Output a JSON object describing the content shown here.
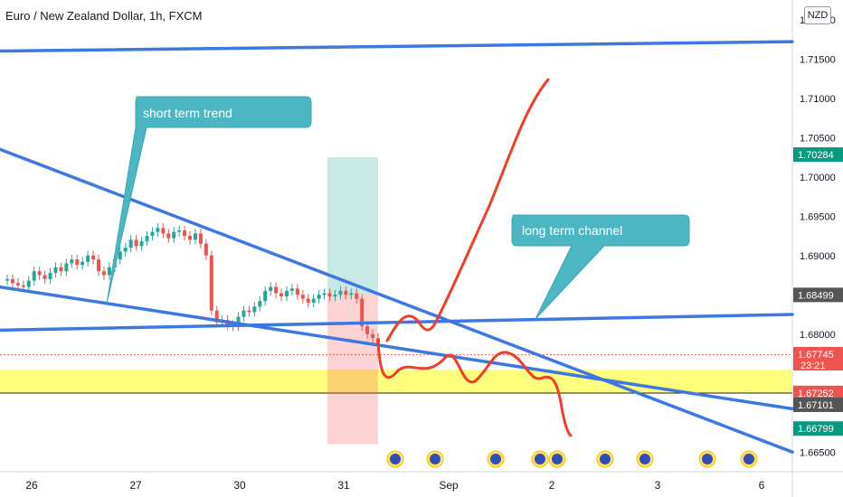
{
  "header": {
    "title": "Euro / New Zealand Dollar, 1h, FXCM",
    "currency_badge": "NZD"
  },
  "colors": {
    "up": "#26a69a",
    "down": "#ef5350",
    "trend": "#3d78e0",
    "drawing": "#f23d27",
    "callout": "#4db6c3",
    "zone": "#ffff66"
  },
  "chart_data": {
    "type": "candlestick",
    "ylim": [
      1.6625,
      1.7225
    ],
    "y_ticks": [
      "1.72000",
      "1.71500",
      "1.71000",
      "1.70500",
      "1.70000",
      "1.69500",
      "1.69000",
      "1.68000",
      "1.66500"
    ],
    "x_ticks": [
      "26",
      "27",
      "30",
      "31",
      "Sep",
      "2",
      "3",
      "6"
    ],
    "price_labels": [
      {
        "text": "1.70284",
        "value": 1.70284,
        "color": "#089981"
      },
      {
        "text": "1.68499",
        "value": 1.68499,
        "color": "#555555"
      },
      {
        "text": "1.67745",
        "value": 1.67745,
        "color": "#ef5350",
        "sub": "23:21"
      },
      {
        "text": "1.67252",
        "value": 1.67252,
        "color": "#ef5350"
      },
      {
        "text": "1.67101",
        "value": 1.67101,
        "color": "#555555"
      },
      {
        "text": "1.66799",
        "value": 1.66799,
        "color": "#089981"
      }
    ],
    "candles_close": [
      1.687,
      1.6865,
      1.6862,
      1.686,
      1.6868,
      1.688,
      1.6875,
      1.687,
      1.6878,
      1.6885,
      1.688,
      1.689,
      1.6895,
      1.6888,
      1.6892,
      1.69,
      1.6895,
      1.688,
      1.6875,
      1.6885,
      1.6895,
      1.6905,
      1.691,
      1.692,
      1.6912,
      1.6918,
      1.6925,
      1.693,
      1.6935,
      1.6928,
      1.6922,
      1.693,
      1.6932,
      1.6925,
      1.692,
      1.6928,
      1.6915,
      1.69,
      1.683,
      1.6815,
      1.6818,
      1.6812,
      1.681,
      1.6822,
      1.683,
      1.6828,
      1.6835,
      1.6842,
      1.6855,
      1.686,
      1.6852,
      1.6848,
      1.6855,
      1.6858,
      1.685,
      1.6845,
      1.684,
      1.6845,
      1.685,
      1.6852,
      1.6848,
      1.685,
      1.6855,
      1.685,
      1.6852,
      1.6845,
      1.681,
      1.68,
      1.6795,
      1.6785
    ],
    "trendlines": [
      {
        "name": "long-term-channel-upper",
        "p1": [
          0,
          1.716
        ],
        "p2": [
          1,
          1.7172
        ]
      },
      {
        "name": "long-term-channel-lower",
        "p1": [
          0,
          1.6805
        ],
        "p2": [
          1,
          1.6825
        ]
      },
      {
        "name": "short-term-trend-upper",
        "p1": [
          0,
          1.7035
        ],
        "p2": [
          1,
          1.665
        ]
      },
      {
        "name": "short-term-trend-lower",
        "p1": [
          0,
          1.686
        ],
        "p2": [
          1,
          1.6705
        ]
      }
    ],
    "support_zone": [
      1.6725,
      1.6755
    ],
    "position": {
      "entry": 1.685,
      "target": 1.7025,
      "stop": 1.666
    },
    "annotations": [
      "short term trend",
      "long term channel"
    ]
  }
}
